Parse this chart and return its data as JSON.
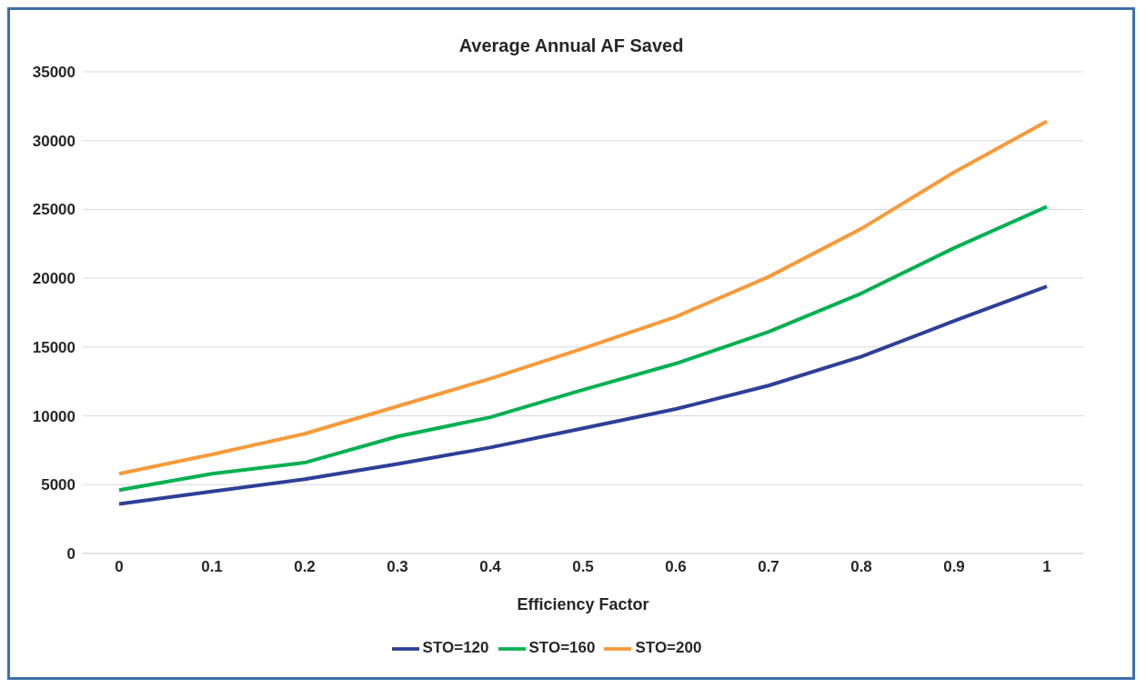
{
  "chart_data": {
    "type": "line",
    "title": "Average Annual AF Saved",
    "xlabel": "Efficiency Factor",
    "categories": [
      "0",
      "0.1",
      "0.2",
      "0.3",
      "0.4",
      "0.5",
      "0.6",
      "0.7",
      "0.8",
      "0.9",
      "1"
    ],
    "series": [
      {
        "name": "STO=120",
        "color": "#2e3f97",
        "values": [
          3600,
          4500,
          5400,
          6500,
          7700,
          9100,
          10500,
          12200,
          14300,
          16900,
          19400
        ]
      },
      {
        "name": "STO=160",
        "color": "#00b050",
        "values": [
          4600,
          5800,
          6600,
          8500,
          9900,
          11900,
          13800,
          16100,
          18900,
          22200,
          25200
        ]
      },
      {
        "name": "STO=200",
        "color": "#f79a3a",
        "values": [
          5800,
          7200,
          8700,
          10700,
          12700,
          14900,
          17200,
          20100,
          23600,
          27700,
          31400
        ]
      }
    ],
    "ylim": [
      0,
      35000
    ],
    "yticks": [
      0,
      5000,
      10000,
      15000,
      20000,
      25000,
      30000,
      35000
    ],
    "grid": "y",
    "legend": "bottom",
    "marker": "none",
    "line_style": "solid"
  }
}
